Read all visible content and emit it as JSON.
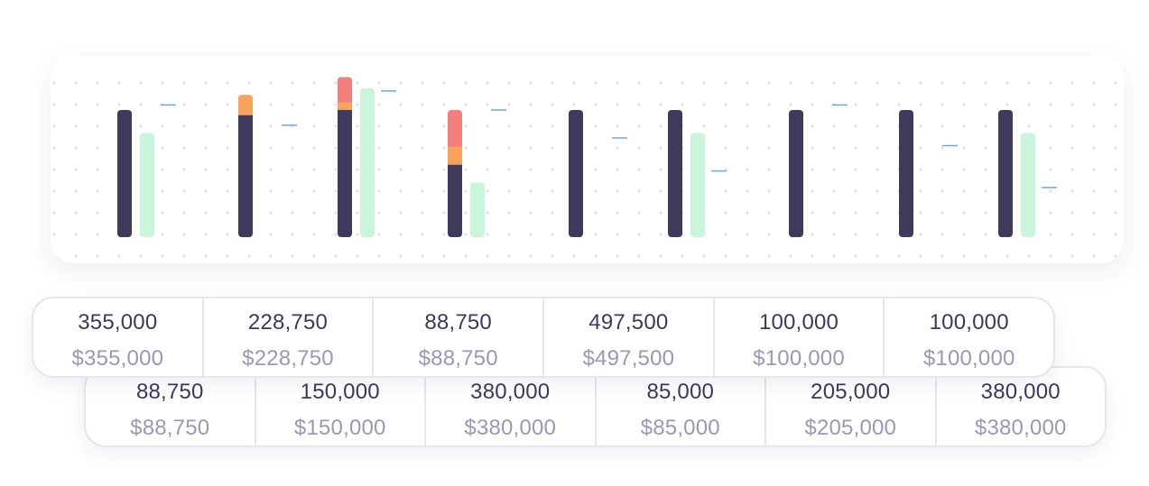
{
  "chart_data": {
    "type": "bar",
    "description_note": "Nine groups of paired vertical bars (stacked dark/orange/red bar plus a light green bar) with a small blue target tick; no axis labels shown.",
    "ylim": [
      0,
      100
    ],
    "groups": [
      {
        "primary": 100,
        "secondary": 0,
        "tertiary": 0,
        "green": 82,
        "target": 104
      },
      {
        "primary": 96,
        "secondary": 16,
        "tertiary": 0,
        "green": 0,
        "target": 88
      },
      {
        "primary": 100,
        "secondary": 6,
        "tertiary": 20,
        "green": 117,
        "target": 115
      },
      {
        "primary": 57,
        "secondary": 14,
        "tertiary": 29,
        "green": 43,
        "target": 100
      },
      {
        "primary": 100,
        "secondary": 0,
        "tertiary": 0,
        "green": 0,
        "target": 78
      },
      {
        "primary": 100,
        "secondary": 0,
        "tertiary": 0,
        "green": 82,
        "target": 52
      },
      {
        "primary": 100,
        "secondary": 0,
        "tertiary": 0,
        "green": 0,
        "target": 104
      },
      {
        "primary": 100,
        "secondary": 0,
        "tertiary": 0,
        "green": 0,
        "target": 72
      },
      {
        "primary": 100,
        "secondary": 0,
        "tertiary": 0,
        "green": 82,
        "target": 39
      }
    ],
    "colors": {
      "primary": "#3d3a5c",
      "secondary": "#f7a35c",
      "tertiary": "#f47f7f",
      "green": "#c9f5dc",
      "target": "#6aa8e8",
      "dots": "#e2e2ea"
    }
  },
  "table": {
    "row1": [
      {
        "units": "355,000",
        "amount": "$355,000"
      },
      {
        "units": "228,750",
        "amount": "$228,750"
      },
      {
        "units": "88,750",
        "amount": "$88,750"
      },
      {
        "units": "497,500",
        "amount": "$497,500"
      },
      {
        "units": "100,000",
        "amount": "$100,000"
      },
      {
        "units": "100,000",
        "amount": "$100,000"
      }
    ],
    "row2": [
      {
        "units": "88,750",
        "amount": "$88,750"
      },
      {
        "units": "150,000",
        "amount": "$150,000"
      },
      {
        "units": "380,000",
        "amount": "$380,000"
      },
      {
        "units": "85,000",
        "amount": "$85,000"
      },
      {
        "units": "205,000",
        "amount": "$205,000"
      },
      {
        "units": "380,000",
        "amount": "$380,000"
      }
    ]
  }
}
